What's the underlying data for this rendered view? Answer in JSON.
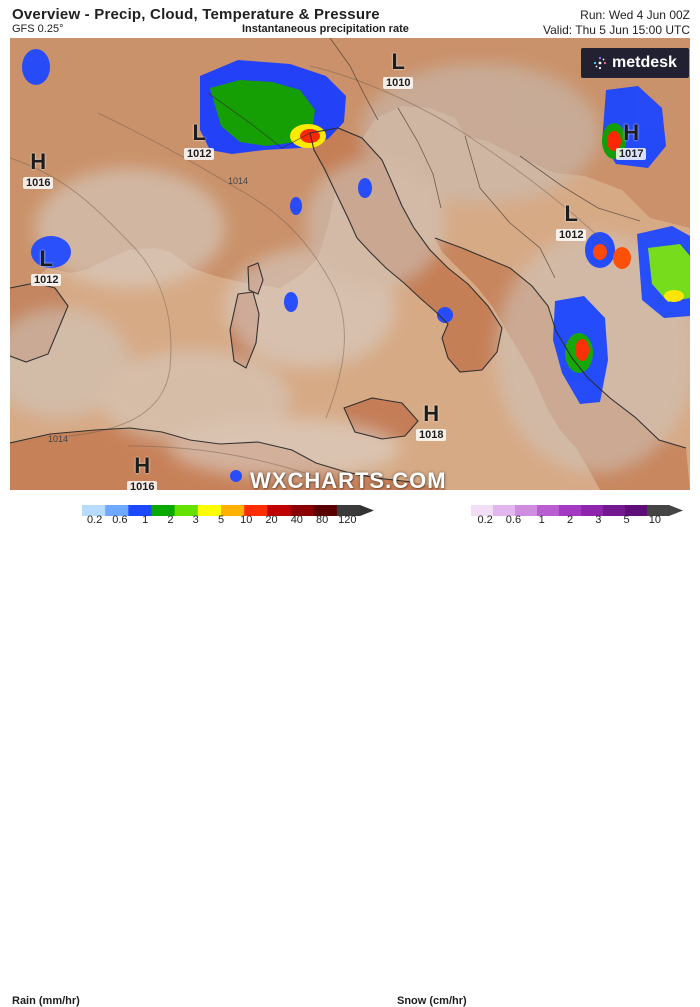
{
  "header": {
    "title": "Overview - Precip, Cloud, Temperature & Pressure",
    "model": "GFS 0.25°",
    "field": "Instantaneous precipitation rate",
    "run": "Run: Wed 4 Jun 00Z",
    "valid": "Valid: Thu 5 Jun 15:00 UTC"
  },
  "brand": {
    "logo_text": "metdesk",
    "watermark": "WXCHARTS.COM"
  },
  "pressure_systems": [
    {
      "type": "L",
      "value": "1010"
    },
    {
      "type": "L",
      "value": "1012"
    },
    {
      "type": "H",
      "value": "1016"
    },
    {
      "type": "L",
      "value": "1012"
    },
    {
      "type": "H",
      "value": "1017"
    },
    {
      "type": "L",
      "value": "1012"
    },
    {
      "type": "H",
      "value": "1018"
    },
    {
      "type": "H",
      "value": "1016"
    }
  ],
  "isobar_labels": [
    "1014",
    "1014"
  ],
  "legend": {
    "rain_title": "Rain (mm/hr)",
    "rain_ticks": [
      "0.2",
      "0.6",
      "1",
      "2",
      "3",
      "5",
      "10",
      "20",
      "40",
      "80",
      "120"
    ],
    "rain_colors": [
      "#b8dcff",
      "#6fa8ff",
      "#1c49ff",
      "#0aa900",
      "#64e100",
      "#ffff00",
      "#ffb000",
      "#ff2e00",
      "#c00000",
      "#8b0000",
      "#5b0000",
      "#3b3b3b"
    ],
    "snow_title": "Snow (cm/hr)",
    "snow_ticks": [
      "0.2",
      "0.6",
      "1",
      "2",
      "3",
      "5",
      "10"
    ],
    "snow_colors": [
      "#f3def7",
      "#e2b6ee",
      "#cf8de0",
      "#b85ed0",
      "#a53ac2",
      "#8d26ad",
      "#741a91",
      "#5e0e79",
      "#444444"
    ]
  },
  "colors": {
    "land": "#cb9167",
    "sea": "#d9ad87",
    "cloud": "#cfc8c2",
    "coast": "#2f2f2f"
  }
}
